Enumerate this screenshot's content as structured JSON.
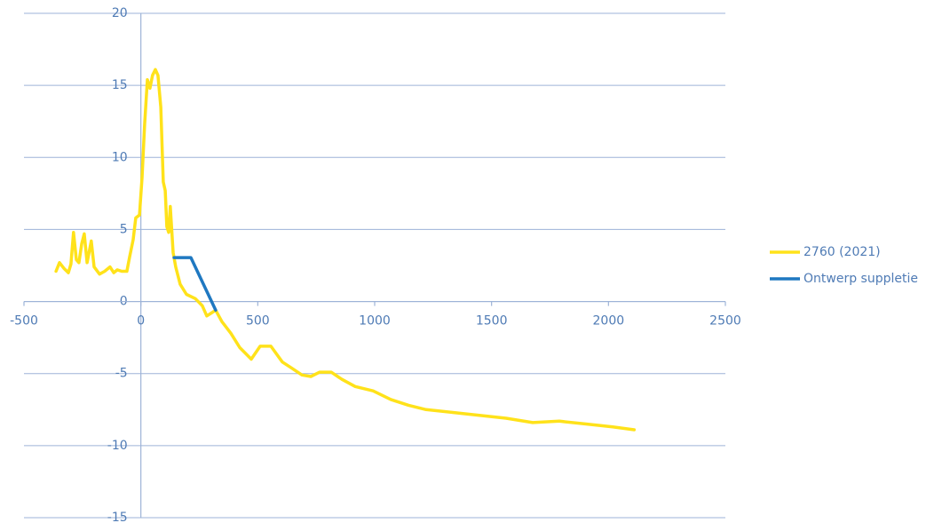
{
  "chart_data": {
    "type": "line",
    "series": [
      {
        "name": "2760 (2021)",
        "color": "#ffe21a",
        "x": [
          -363,
          -348,
          -329,
          -310,
          -299,
          -288,
          -276,
          -265,
          -253,
          -242,
          -230,
          -212,
          -200,
          -177,
          -155,
          -132,
          -116,
          -101,
          -82,
          -60,
          -48,
          -33,
          -22,
          -6,
          5,
          16,
          28,
          39,
          50,
          62,
          73,
          85,
          96,
          104,
          111,
          119,
          126,
          138,
          149,
          168,
          195,
          233,
          263,
          282,
          301,
          320,
          347,
          385,
          423,
          472,
          510,
          556,
          605,
          643,
          689,
          727,
          765,
          814,
          860,
          917,
          993,
          1069,
          1145,
          1220,
          1334,
          1448,
          1562,
          1676,
          1790,
          1904,
          2018,
          2110
        ],
        "values": [
          2.1,
          2.7,
          2.3,
          2.0,
          2.6,
          4.8,
          2.9,
          2.7,
          4.0,
          4.7,
          2.7,
          4.2,
          2.4,
          1.9,
          2.1,
          2.4,
          2.0,
          2.2,
          2.1,
          2.1,
          3.1,
          4.3,
          5.8,
          6.0,
          8.6,
          12.3,
          15.4,
          14.8,
          15.7,
          16.1,
          15.7,
          13.5,
          8.3,
          7.7,
          5.2,
          4.8,
          6.6,
          3.4,
          2.4,
          1.2,
          0.5,
          0.2,
          -0.3,
          -1.0,
          -0.8,
          -0.6,
          -1.4,
          -2.2,
          -3.2,
          -4.0,
          -3.1,
          -3.1,
          -4.2,
          -4.6,
          -5.1,
          -5.2,
          -4.9,
          -4.9,
          -5.4,
          -5.9,
          -6.2,
          -6.8,
          -7.2,
          -7.5,
          -7.7,
          -7.9,
          -8.1,
          -8.4,
          -8.3,
          -8.5,
          -8.7,
          -8.9
        ]
      },
      {
        "name": "Ontwerp suppletie",
        "color": "#1f78c1",
        "x": [
          142,
          214,
          320
        ],
        "values": [
          3.05,
          3.05,
          -0.6
        ]
      }
    ],
    "xlim": [
      -500,
      2500
    ],
    "xticks": [
      -500,
      0,
      500,
      1000,
      1500,
      2000,
      2500
    ],
    "ylim": [
      -15,
      20
    ],
    "yticks": [
      -15,
      -10,
      -5,
      0,
      5,
      10,
      15,
      20
    ],
    "grid": true,
    "legend": "right"
  }
}
